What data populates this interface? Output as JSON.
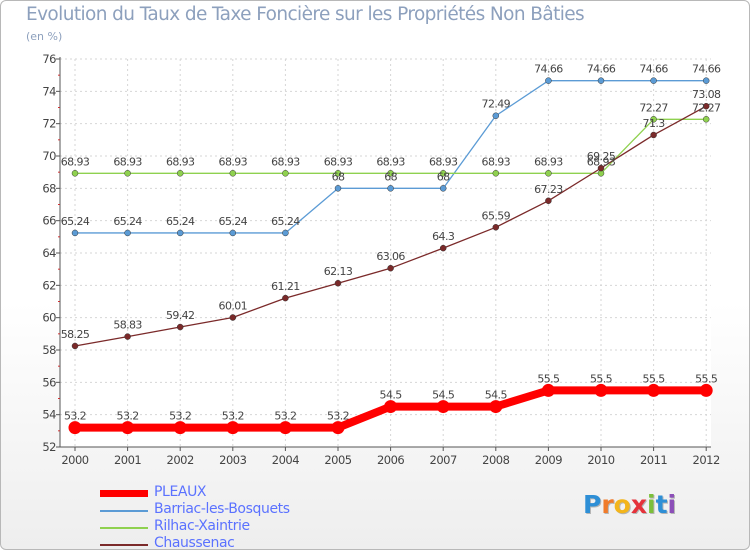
{
  "chart_data": {
    "type": "line",
    "title": "Evolution du Taux de Taxe Foncière sur les Propriétés Non Bâties",
    "subtitle": "(en %)",
    "categories": [
      "2000",
      "2001",
      "2002",
      "2003",
      "2004",
      "2005",
      "2006",
      "2007",
      "2008",
      "2009",
      "2010",
      "2011",
      "2012"
    ],
    "ylim": [
      52,
      76
    ],
    "y_ticks": [
      52,
      54,
      56,
      58,
      60,
      62,
      64,
      66,
      68,
      70,
      72,
      74,
      76
    ],
    "grid": true,
    "legend_position": "bottom-left",
    "series": [
      {
        "name": "PLEAUX",
        "color": "#ff0000",
        "values": [
          53.2,
          53.2,
          53.2,
          53.2,
          53.2,
          53.2,
          54.5,
          54.5,
          54.5,
          55.5,
          55.5,
          55.5,
          55.5
        ],
        "labels": [
          "53.2",
          "53.2",
          "53.2",
          "53.2",
          "53.2",
          "53.2",
          "54.5",
          "54.5",
          "54.5",
          "55.5",
          "55.5",
          "55.5",
          "55.5"
        ]
      },
      {
        "name": "Barriac-les-Bosquets",
        "color": "#5b9bd5",
        "values": [
          65.24,
          65.24,
          65.24,
          65.24,
          65.24,
          68,
          68,
          68,
          72.49,
          74.66,
          74.66,
          74.66,
          74.66
        ],
        "labels": [
          "65.24",
          "65.24",
          "65.24",
          "65.24",
          "65.24",
          "68",
          "68",
          "68",
          "72.49",
          "74.66",
          "74.66",
          "74.66",
          "74.66"
        ]
      },
      {
        "name": "Rilhac-Xaintrie",
        "color": "#8fd14f",
        "values": [
          68.93,
          68.93,
          68.93,
          68.93,
          68.93,
          68.93,
          68.93,
          68.93,
          68.93,
          68.93,
          68.93,
          72.27,
          72.27
        ],
        "labels": [
          "68.93",
          "68.93",
          "68.93",
          "68.93",
          "68.93",
          "68.93",
          "68.93",
          "68.93",
          "68.93",
          "68.93",
          "68.93",
          "72.27",
          "72.27"
        ]
      },
      {
        "name": "Chaussenac",
        "color": "#7b2a2a",
        "values": [
          58.25,
          58.83,
          59.42,
          60.01,
          61.21,
          62.13,
          63.06,
          64.3,
          65.59,
          67.23,
          69.25,
          71.3,
          73.08
        ],
        "labels": [
          "58.25",
          "58.83",
          "59.42",
          "60.01",
          "61.21",
          "62.13",
          "63.06",
          "64.3",
          "65.59",
          "67.23",
          "69.25",
          "71.3",
          "73.08"
        ]
      }
    ]
  },
  "branding": {
    "logo_text": "Proxiti",
    "logo_colors": [
      "#2e8fd6",
      "#f07b2a",
      "#f3b51b",
      "#e5323a",
      "#7bbf3a",
      "#2e8fd6",
      "#8c4fb8"
    ]
  }
}
